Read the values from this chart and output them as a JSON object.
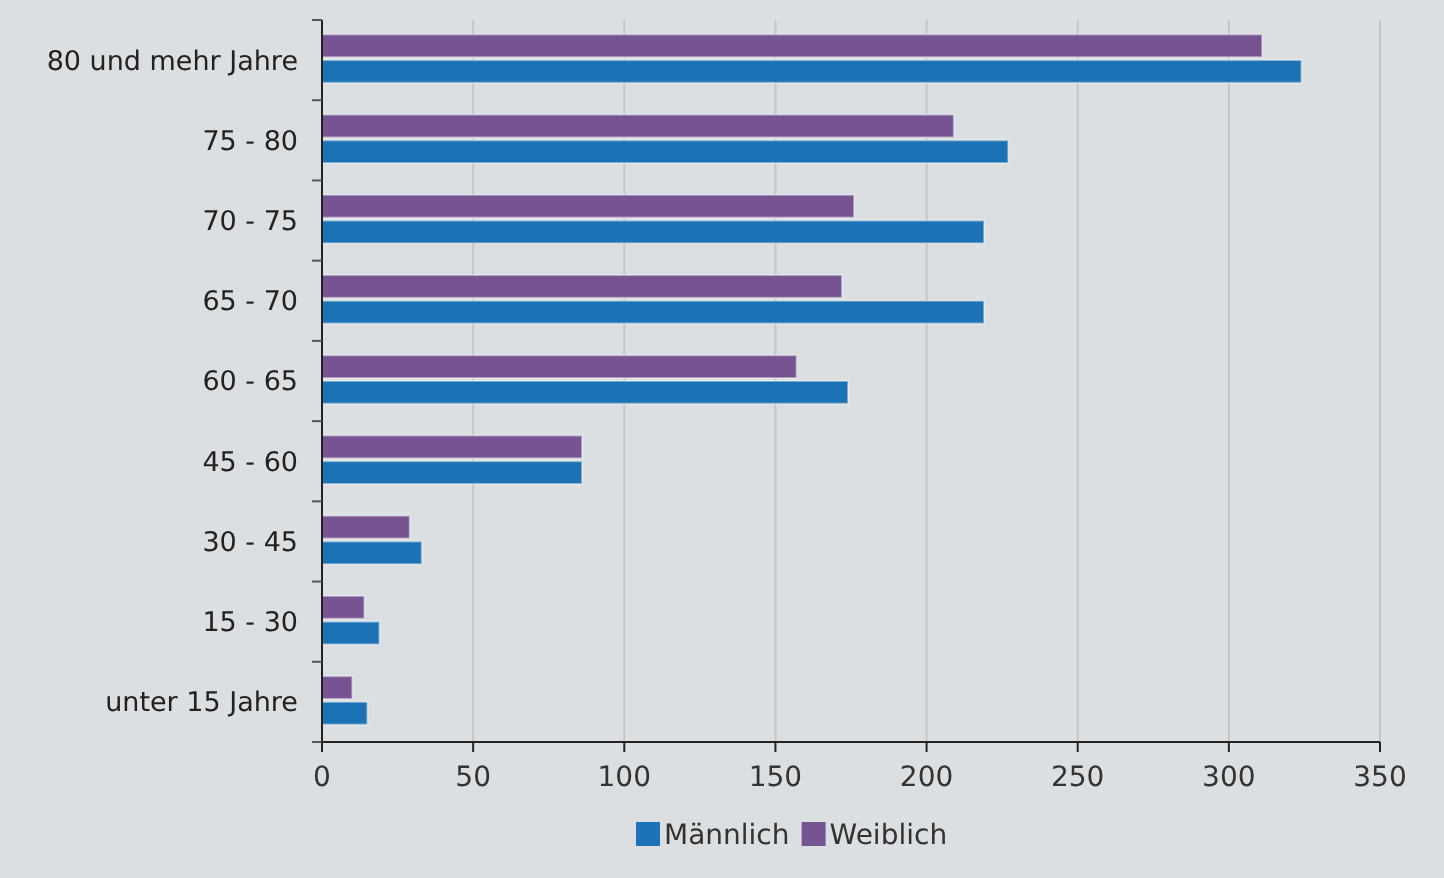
{
  "chart_data": {
    "type": "bar",
    "orientation": "horizontal",
    "categories": [
      "80 und mehr Jahre",
      "75 - 80",
      "70 - 75",
      "65 - 70",
      "60 - 65",
      "45 - 60",
      "30 - 45",
      "15 - 30",
      "unter 15 Jahre"
    ],
    "series": [
      {
        "name": "Männlich",
        "color": "#1b72b4",
        "values": [
          324,
          227,
          219,
          219,
          174,
          86,
          33,
          19,
          15
        ]
      },
      {
        "name": "Weiblich",
        "color": "#765391",
        "values": [
          311,
          209,
          176,
          172,
          157,
          86,
          29,
          14,
          10
        ]
      }
    ],
    "xlim": [
      0,
      350
    ],
    "xticks": [
      0,
      50,
      100,
      150,
      200,
      250,
      300,
      350
    ],
    "grid": "x",
    "legend": "bottom"
  }
}
